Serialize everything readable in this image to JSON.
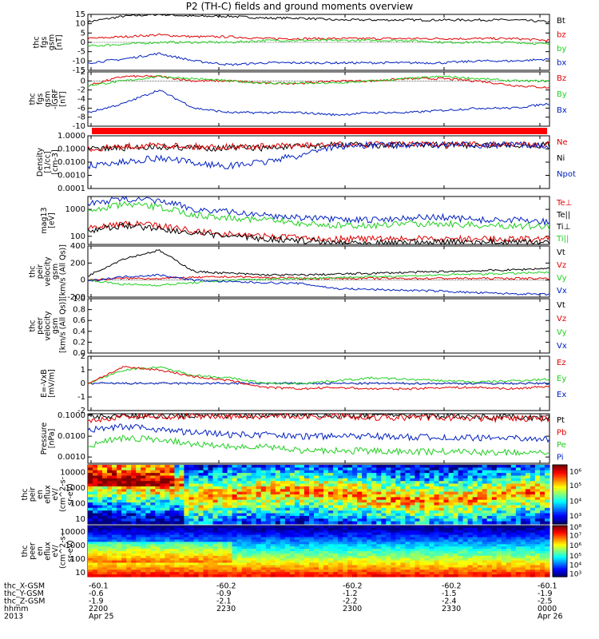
{
  "chart_data": {
    "type": "line",
    "title": "P2 (TH-C) fields and ground moments overview",
    "colors": {
      "black": "#000000",
      "red": "#e00000",
      "green": "#20d020",
      "blue": "#0020c0"
    },
    "panels": [
      {
        "ylabel": [
          "thc",
          "fgs",
          "gsm",
          "[nT]"
        ],
        "ylim": [
          -15,
          15
        ],
        "ticks": [
          "15",
          "10",
          "5",
          "0",
          "-5",
          "-10",
          "-15"
        ],
        "tick_values": [
          15,
          10,
          5,
          0,
          -5,
          -10,
          -15
        ],
        "zero_line": true,
        "legend": [
          {
            "name": "Bt",
            "color": "black"
          },
          {
            "name": "bz",
            "color": "red"
          },
          {
            "name": "by",
            "color": "green"
          },
          {
            "name": "bx",
            "color": "blue"
          }
        ],
        "series": [
          {
            "name": "Bt",
            "color": "black",
            "values": [
              11,
              14,
              15,
              14,
              14,
              13,
              13,
              12,
              12,
              12,
              12,
              12,
              12,
              11
            ]
          },
          {
            "name": "bz",
            "color": "red",
            "values": [
              2,
              3,
              4,
              3,
              3,
              2,
              2,
              2,
              2,
              2,
              2,
              2,
              2,
              1
            ]
          },
          {
            "name": "by",
            "color": "green",
            "values": [
              -2,
              -1,
              0,
              0,
              0,
              1,
              1,
              1,
              1,
              1,
              0,
              0,
              0,
              -1
            ]
          },
          {
            "name": "bx",
            "color": "blue",
            "values": [
              -11,
              -9,
              -6,
              -10,
              -12,
              -11,
              -11,
              -11,
              -11,
              -11,
              -11,
              -10,
              -10,
              -9
            ]
          }
        ]
      },
      {
        "ylabel": [
          "thc",
          "fgs",
          "gsm",
          "-IGRF",
          "[nT]"
        ],
        "ylim": [
          -10,
          2
        ],
        "ticks": [
          "2",
          "0",
          "-2",
          "-4",
          "-6",
          "-8",
          "-10"
        ],
        "tick_values": [
          2,
          0,
          -2,
          -4,
          -6,
          -8,
          -10
        ],
        "zero_line": true,
        "legend": [
          {
            "name": "Bz",
            "color": "red"
          },
          {
            "name": "By",
            "color": "green"
          },
          {
            "name": "Bx",
            "color": "blue"
          }
        ],
        "series": [
          {
            "name": "Bz",
            "color": "red",
            "values": [
              -1,
              1,
              1,
              0,
              0,
              -0.5,
              -0.5,
              0,
              0,
              0.5,
              0.5,
              0,
              -1,
              -1.5
            ]
          },
          {
            "name": "By",
            "color": "green",
            "values": [
              -1,
              0,
              1,
              0.5,
              0,
              -0.5,
              -0.5,
              -0.5,
              0,
              0.5,
              1,
              0.5,
              0,
              0
            ]
          },
          {
            "name": "Bx",
            "color": "blue",
            "values": [
              -7,
              -5,
              -2,
              -6,
              -7,
              -7,
              -7,
              -7.5,
              -7,
              -7,
              -6.5,
              -6,
              -6,
              -5
            ]
          }
        ]
      },
      {
        "type": "bar_strip",
        "color": "#ff0000"
      },
      {
        "ylabel": [
          "Density",
          "[1/cc]",
          "[cm-3]"
        ],
        "scale": "log",
        "ylim": [
          0.0001,
          1
        ],
        "ticks": [
          "1.0000",
          "0.1000",
          "0.0100",
          "0.0010",
          "0.0001"
        ],
        "tick_values": [
          1,
          0.1,
          0.01,
          0.001,
          0.0001
        ],
        "legend": [
          {
            "name": "Ne",
            "color": "red"
          },
          {
            "name": "Ni",
            "color": "black"
          },
          {
            "name": "Npot",
            "color": "blue"
          }
        ],
        "series": [
          {
            "name": "Ni",
            "color": "black",
            "values": [
              0.1,
              0.12,
              0.15,
              0.12,
              0.12,
              0.12,
              0.15,
              0.2,
              0.2,
              0.2,
              0.2,
              0.2,
              0.2,
              0.2
            ]
          },
          {
            "name": "Ne",
            "color": "red",
            "values": [
              0.1,
              0.15,
              0.2,
              0.15,
              0.15,
              0.15,
              0.18,
              0.2,
              0.22,
              0.22,
              0.2,
              0.22,
              0.22,
              0.22
            ]
          },
          {
            "name": "Npot",
            "color": "blue",
            "values": [
              0.005,
              0.01,
              0.02,
              0.008,
              0.005,
              0.01,
              0.03,
              0.15,
              0.2,
              0.2,
              0.2,
              0.2,
              0.2,
              0.2
            ]
          }
        ]
      },
      {
        "ylabel": [
          "mag13",
          "[eV]"
        ],
        "scale": "log",
        "ylim": [
          50,
          3000
        ],
        "ticks": [
          "1000",
          "100"
        ],
        "tick_values": [
          1000,
          100
        ],
        "legend": [
          {
            "name": "Te⊥",
            "color": "red"
          },
          {
            "name": "Te||",
            "color": "black"
          },
          {
            "name": "Ti⊥",
            "color": "black"
          },
          {
            "name": "Ti||",
            "color": "green"
          }
        ],
        "series": [
          {
            "name": "Ti⊥",
            "color": "blue",
            "values": [
              1500,
              2500,
              2000,
              1000,
              800,
              600,
              500,
              400,
              400,
              500,
              500,
              400,
              400,
              350
            ]
          },
          {
            "name": "Ti||",
            "color": "green",
            "values": [
              800,
              1500,
              1200,
              600,
              500,
              400,
              300,
              250,
              250,
              300,
              300,
              250,
              250,
              220
            ]
          },
          {
            "name": "Te⊥",
            "color": "red",
            "values": [
              200,
              300,
              250,
              150,
              120,
              100,
              90,
              80,
              80,
              80,
              80,
              80,
              80,
              80
            ]
          },
          {
            "name": "Te||",
            "color": "black",
            "values": [
              150,
              250,
              200,
              120,
              100,
              80,
              70,
              60,
              60,
              60,
              60,
              60,
              60,
              60
            ]
          }
        ]
      },
      {
        "ylabel": [
          "thc",
          "peir",
          "velocity",
          "gsm",
          "[km/s (All Qs)]"
        ],
        "ylim": [
          -200,
          400
        ],
        "ticks": [
          "400",
          "200",
          "0",
          "-200"
        ],
        "tick_values": [
          400,
          200,
          0,
          -200
        ],
        "zero_line": true,
        "legend": [
          {
            "name": "Vt",
            "color": "black"
          },
          {
            "name": "Vz",
            "color": "red"
          },
          {
            "name": "Vy",
            "color": "green"
          },
          {
            "name": "Vx",
            "color": "blue"
          }
        ],
        "series": [
          {
            "name": "Vt",
            "color": "black",
            "values": [
              50,
              250,
              350,
              100,
              80,
              60,
              60,
              70,
              80,
              90,
              100,
              110,
              120,
              140
            ]
          },
          {
            "name": "Vz",
            "color": "red",
            "values": [
              0,
              20,
              20,
              30,
              40,
              30,
              20,
              20,
              20,
              20,
              20,
              20,
              20,
              20
            ]
          },
          {
            "name": "Vy",
            "color": "green",
            "values": [
              0,
              -50,
              -60,
              -30,
              0,
              10,
              20,
              30,
              40,
              50,
              60,
              70,
              80,
              90
            ]
          },
          {
            "name": "Vx",
            "color": "blue",
            "values": [
              -10,
              40,
              60,
              0,
              -20,
              -30,
              -40,
              -100,
              -110,
              -120,
              -130,
              -150,
              -160,
              -170
            ]
          }
        ]
      },
      {
        "ylabel": [
          "thc",
          "peer",
          "velocity",
          "gsm",
          "[km/s (All Qs)]"
        ],
        "ylim": [
          0,
          1
        ],
        "ticks": [
          "1.0",
          "0.8",
          "0.6",
          "0.4",
          "0.2",
          "0.0"
        ],
        "tick_values": [
          1,
          0.8,
          0.6,
          0.4,
          0.2,
          0
        ],
        "legend": [
          {
            "name": "Vt",
            "color": "black"
          },
          {
            "name": "Vz",
            "color": "red"
          },
          {
            "name": "Vy",
            "color": "green"
          },
          {
            "name": "Vx",
            "color": "blue"
          }
        ],
        "series": []
      },
      {
        "ylabel": [
          "E=-VxB",
          "[mV/m]"
        ],
        "ylim": [
          -2,
          2
        ],
        "ticks": [
          "2",
          "1",
          "0",
          "-1",
          "-2"
        ],
        "tick_values": [
          2,
          1,
          0,
          -1,
          -2
        ],
        "zero_line": true,
        "legend": [
          {
            "name": "Ez",
            "color": "red"
          },
          {
            "name": "Ey",
            "color": "green"
          },
          {
            "name": "Ex",
            "color": "blue"
          }
        ],
        "series": [
          {
            "name": "Ex",
            "color": "blue",
            "values": [
              0,
              0,
              0,
              0,
              0,
              0,
              0,
              0,
              0,
              0,
              0,
              0,
              0,
              0
            ]
          },
          {
            "name": "Ey",
            "color": "green",
            "values": [
              0,
              1,
              1.2,
              0.6,
              0.4,
              0,
              0,
              0.2,
              0.4,
              0.3,
              0.2,
              0.1,
              0.2,
              0.3
            ]
          },
          {
            "name": "Ez",
            "color": "red",
            "values": [
              0,
              1.2,
              1,
              0.5,
              0.2,
              -0.3,
              -0.4,
              -0.3,
              -0.4,
              -0.4,
              -0.3,
              -0.3,
              -0.4,
              -0.2
            ]
          }
        ]
      },
      {
        "ylabel": [
          "Pressure",
          "[nPa]"
        ],
        "scale": "log",
        "ylim": [
          0.0005,
          0.12
        ],
        "ticks": [
          "0.1000",
          "0.0100",
          "0.0010"
        ],
        "tick_values": [
          0.1,
          0.01,
          0.001
        ],
        "legend": [
          {
            "name": "Pt",
            "color": "black"
          },
          {
            "name": "Pb",
            "color": "red"
          },
          {
            "name": "Pe",
            "color": "green"
          },
          {
            "name": "Pi",
            "color": "blue"
          }
        ],
        "series": [
          {
            "name": "Pt",
            "color": "black",
            "values": [
              0.09,
              0.1,
              0.1,
              0.1,
              0.1,
              0.1,
              0.1,
              0.1,
              0.1,
              0.1,
              0.09,
              0.08,
              0.08,
              0.08
            ]
          },
          {
            "name": "Pb",
            "color": "red",
            "values": [
              0.06,
              0.08,
              0.09,
              0.09,
              0.09,
              0.09,
              0.09,
              0.09,
              0.08,
              0.08,
              0.08,
              0.07,
              0.07,
              0.07
            ]
          },
          {
            "name": "Pi",
            "color": "blue",
            "values": [
              0.02,
              0.03,
              0.02,
              0.015,
              0.012,
              0.012,
              0.01,
              0.01,
              0.01,
              0.009,
              0.009,
              0.008,
              0.008,
              0.007
            ]
          },
          {
            "name": "Pe",
            "color": "green",
            "values": [
              0.003,
              0.008,
              0.007,
              0.004,
              0.003,
              0.003,
              0.002,
              0.002,
              0.002,
              0.0018,
              0.0018,
              0.0017,
              0.0017,
              0.0016
            ]
          }
        ]
      },
      {
        "type": "heatmap",
        "ylabel": [
          "thc",
          "peir",
          "en",
          "eflux",
          "eV/",
          "(cm^2-s-",
          "sr-eV)"
        ],
        "ticks": [
          "10000",
          "1000",
          "100",
          "10"
        ],
        "tick_values": [
          10000,
          1000,
          100,
          10
        ],
        "ylim": [
          5,
          30000
        ],
        "colorbar_ticks": [
          "10⁶",
          "10⁵",
          "10⁴",
          "10³"
        ],
        "colorbar_ratios": [
          0.12,
          0.36,
          0.62,
          0.87
        ]
      },
      {
        "type": "heatmap",
        "ylabel": [
          "thc",
          "peer",
          "en",
          "eflux",
          "eV/",
          "(cm^2-s-",
          "sr-eV)"
        ],
        "ticks": [
          "10000",
          "1000",
          "100",
          "10"
        ],
        "tick_values": [
          10000,
          1000,
          100,
          10
        ],
        "ylim": [
          5,
          30000
        ],
        "colorbar_ticks": [
          "10⁸",
          "10⁷",
          "10⁶",
          "10⁵",
          "10⁴",
          "10³"
        ],
        "colorbar_ratios": [
          0.04,
          0.2,
          0.4,
          0.6,
          0.78,
          0.95
        ]
      }
    ],
    "x_axis": {
      "row_labels": [
        "thc_X-GSM",
        "thc_Y-GSM",
        "thc_Z-GSM",
        "hhmm",
        "2013"
      ],
      "columns": [
        [
          "-60.1",
          "-0.6",
          "-1.9",
          "2200",
          "Apr 25"
        ],
        [
          "-60.2",
          "-0.9",
          "-2.1",
          "2230",
          ""
        ],
        [
          "-60.2",
          "-1.2",
          "-2.2",
          "2300",
          ""
        ],
        [
          "-60.2",
          "-1.5",
          "-2.4",
          "2330",
          ""
        ],
        [
          "-60.1",
          "-1.9",
          "-2.5",
          "0000",
          "Apr 26"
        ]
      ]
    }
  }
}
